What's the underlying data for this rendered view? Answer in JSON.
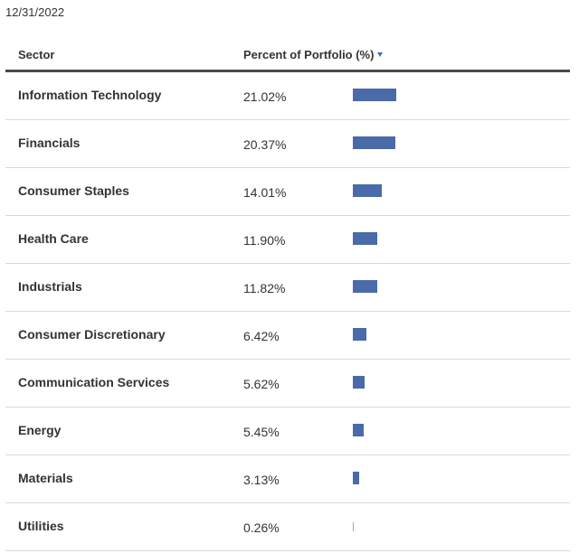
{
  "as_of_date": "12/31/2022",
  "header": {
    "sector": "Sector",
    "percent": "Percent of Portfolio (%)",
    "sort_icon": "sort-descending-icon"
  },
  "colors": {
    "bar": "#4a6aa9",
    "sort_indicator": "#3a6fb0"
  },
  "rows": [
    {
      "sector": "Information Technology",
      "percent": "21.02%",
      "value": 21.02
    },
    {
      "sector": "Financials",
      "percent": "20.37%",
      "value": 20.37
    },
    {
      "sector": "Consumer Staples",
      "percent": "14.01%",
      "value": 14.01
    },
    {
      "sector": "Health Care",
      "percent": "11.90%",
      "value": 11.9
    },
    {
      "sector": "Industrials",
      "percent": "11.82%",
      "value": 11.82
    },
    {
      "sector": "Consumer Discretionary",
      "percent": "6.42%",
      "value": 6.42
    },
    {
      "sector": "Communication Services",
      "percent": "5.62%",
      "value": 5.62
    },
    {
      "sector": "Energy",
      "percent": "5.45%",
      "value": 5.45
    },
    {
      "sector": "Materials",
      "percent": "3.13%",
      "value": 3.13
    },
    {
      "sector": "Utilities",
      "percent": "0.26%",
      "value": 0.26
    }
  ]
}
